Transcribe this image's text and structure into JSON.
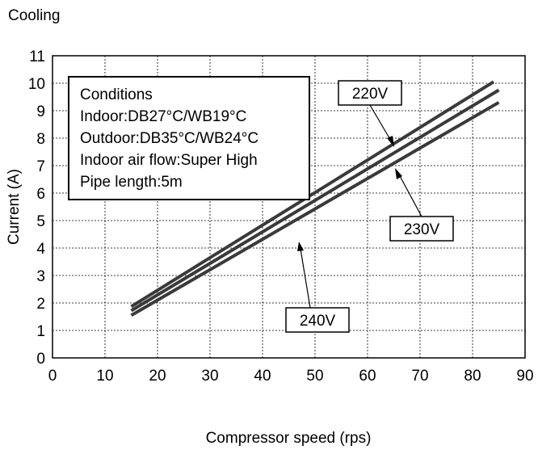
{
  "chart_data": {
    "type": "line",
    "title": "Cooling",
    "xlabel": "Compressor speed (rps)",
    "ylabel": "Current (A)",
    "xlim": [
      0,
      90
    ],
    "ylim": [
      0,
      11
    ],
    "xticks": [
      "0",
      "10",
      "20",
      "30",
      "40",
      "50",
      "60",
      "70",
      "80",
      "90"
    ],
    "yticks": [
      "0",
      "1",
      "2",
      "3",
      "4",
      "5",
      "6",
      "7",
      "8",
      "9",
      "10",
      "11"
    ],
    "grid": true,
    "series": [
      {
        "name": "220V",
        "x": [
          15,
          84
        ],
        "y": [
          1.87,
          10.05
        ]
      },
      {
        "name": "230V",
        "x": [
          15,
          85
        ],
        "y": [
          1.72,
          9.75
        ]
      },
      {
        "name": "240V",
        "x": [
          15,
          85
        ],
        "y": [
          1.55,
          9.3
        ]
      }
    ],
    "conditions": {
      "heading": "Conditions",
      "lines": [
        "Indoor:DB27°C/WB19°C",
        "Outdoor:DB35°C/WB24°C",
        "Indoor air flow:Super High",
        "Pipe length:5m"
      ]
    }
  }
}
